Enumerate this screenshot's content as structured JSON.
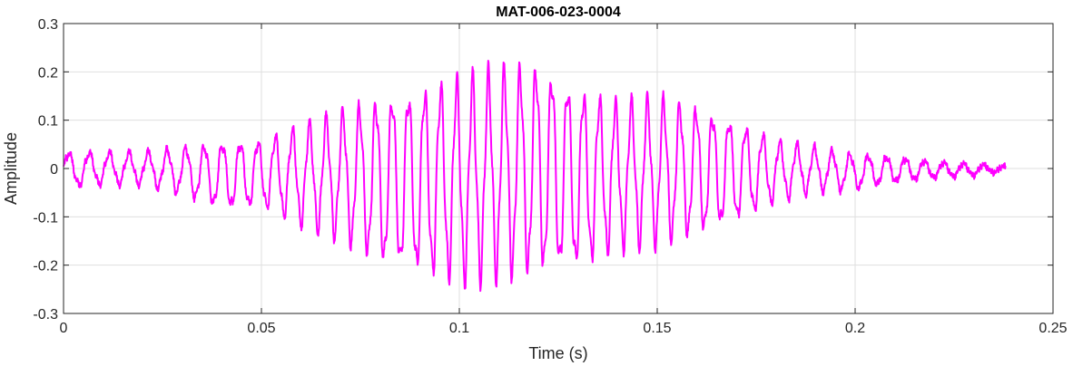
{
  "chart_data": {
    "type": "line",
    "title": "MAT-006-023-0004",
    "xlabel": "Time (s)",
    "ylabel": "Amplitude",
    "xlim": [
      0,
      0.25
    ],
    "ylim": [
      -0.3,
      0.3
    ],
    "xticks": [
      0,
      0.05,
      0.1,
      0.15,
      0.2,
      0.25
    ],
    "xtick_labels": [
      "0",
      "0.05",
      "0.1",
      "0.15",
      "0.2",
      "0.25"
    ],
    "yticks": [
      -0.3,
      -0.2,
      -0.1,
      0,
      0.1,
      0.2,
      0.3
    ],
    "ytick_labels": [
      "-0.3",
      "-0.2",
      "-0.1",
      "0",
      "0.1",
      "0.2",
      "0.3"
    ],
    "grid": true,
    "legend": "none",
    "line_color": "#ff00ff",
    "series": [
      {
        "x": [
          0,
          0.01,
          0.02,
          0.03,
          0.04,
          0.05,
          0.06,
          0.07,
          0.08,
          0.09,
          0.1,
          0.11,
          0.12,
          0.13,
          0.14,
          0.15,
          0.16,
          0.17,
          0.18,
          0.19,
          0.2,
          0.21,
          0.22,
          0.23,
          0.238
        ],
        "envelope_upper": [
          0.035,
          0.035,
          0.035,
          0.045,
          0.055,
          0.06,
          0.09,
          0.12,
          0.15,
          0.17,
          0.19,
          0.21,
          0.22,
          0.17,
          0.14,
          0.15,
          0.13,
          0.1,
          0.06,
          0.045,
          0.03,
          0.025,
          0.015,
          0.01,
          0.005
        ],
        "envelope_lower": [
          -0.04,
          -0.035,
          -0.035,
          -0.055,
          -0.085,
          -0.08,
          -0.12,
          -0.15,
          -0.2,
          -0.22,
          -0.24,
          -0.23,
          -0.22,
          -0.21,
          -0.17,
          -0.16,
          -0.14,
          -0.11,
          -0.07,
          -0.05,
          -0.045,
          -0.03,
          -0.02,
          -0.015,
          -0.005
        ]
      }
    ]
  }
}
